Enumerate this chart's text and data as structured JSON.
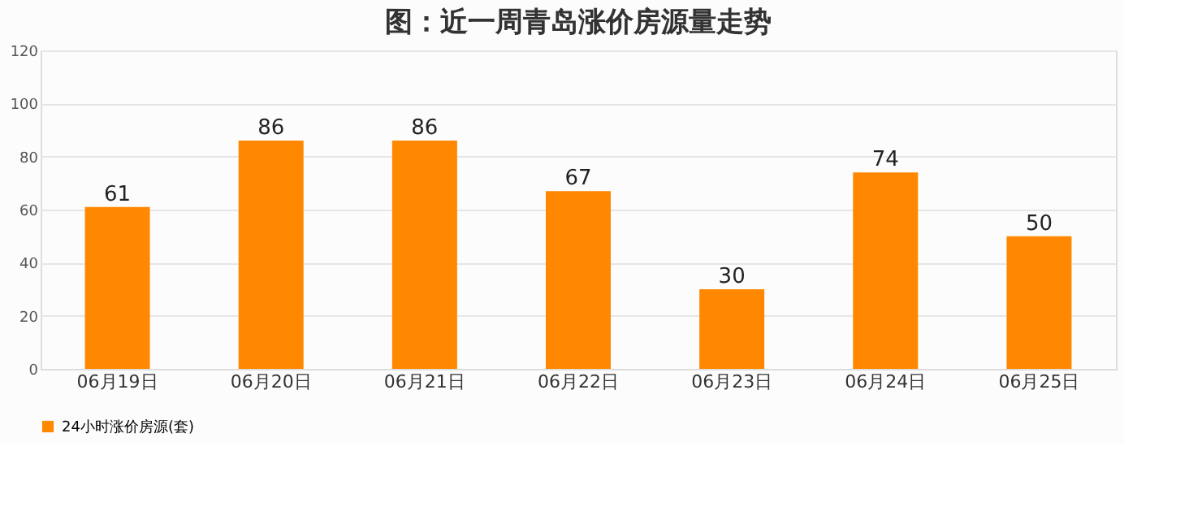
{
  "chart_data": {
    "type": "bar",
    "title": "图：近一周青岛涨价房源量走势",
    "categories": [
      "06月19日",
      "06月20日",
      "06月21日",
      "06月22日",
      "06月23日",
      "06月24日",
      "06月25日"
    ],
    "series": [
      {
        "name": "24小时涨价房源(套)",
        "color": "#ff8800",
        "values": [
          61,
          86,
          86,
          67,
          30,
          74,
          50
        ]
      }
    ],
    "ylim": [
      0,
      120
    ],
    "yticks": [
      0,
      20,
      40,
      60,
      80,
      100,
      120
    ],
    "grid": "y",
    "legend": "bottom",
    "data_labels": true
  }
}
